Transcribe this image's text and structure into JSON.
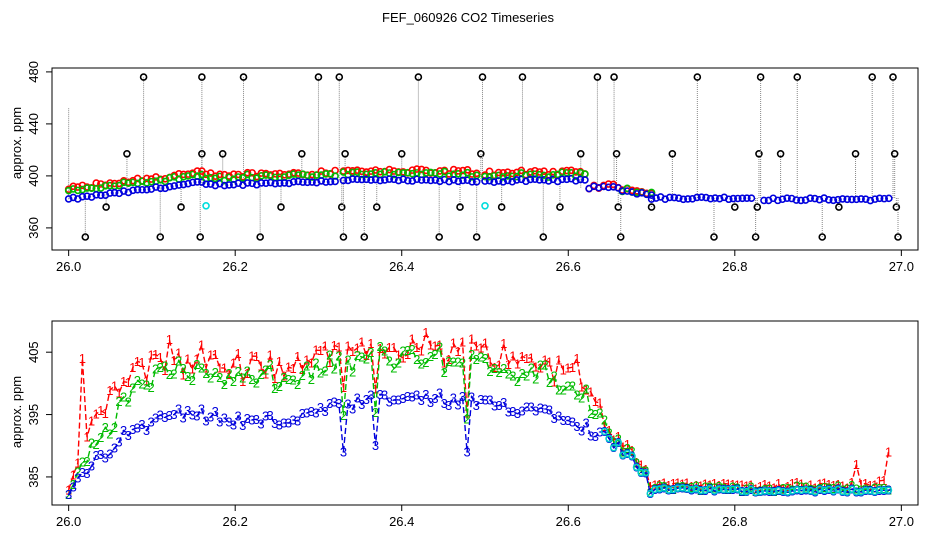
{
  "title": "FEF_060926  CO2 Timeseries",
  "chart_data": [
    {
      "type": "scatter",
      "ylabel": "approx. ppm",
      "xlim": [
        25.98,
        27.02
      ],
      "ylim": [
        343,
        483
      ],
      "xticks": [
        "26.0",
        "26.2",
        "26.4",
        "26.6",
        "26.8",
        "27.0"
      ],
      "yticks": [
        "360",
        "400",
        "440",
        "480"
      ],
      "colors": {
        "c1": "#ff0000",
        "c2": "#00bb00",
        "c3": "#0000dd",
        "cal": "#00dddd",
        "spike": "#000000"
      },
      "segments": [
        {
          "x0": 26.0,
          "x1": 26.16,
          "base0": 382,
          "base1": 395,
          "g_off": 6,
          "r_off": 8
        },
        {
          "x0": 26.165,
          "x1": 26.32,
          "base0": 393,
          "base1": 396,
          "g_off": 5,
          "r_off": 7
        },
        {
          "x0": 26.33,
          "x1": 26.49,
          "base0": 397,
          "base1": 396,
          "g_off": 5,
          "r_off": 7
        },
        {
          "x0": 26.5,
          "x1": 26.62,
          "base0": 396,
          "base1": 397,
          "g_off": 4,
          "r_off": 6
        },
        {
          "x0": 26.625,
          "x1": 26.66,
          "base0": 391,
          "base1": 391,
          "g_off": 0,
          "r_off": 1
        },
        {
          "x0": 26.665,
          "x1": 26.7,
          "base0": 388,
          "base1": 386,
          "g_off": 1,
          "r_off": 2
        },
        {
          "x0": 26.7,
          "x1": 26.82,
          "base0": 383,
          "base1": 383,
          "g_off": 0,
          "r_off": 0
        },
        {
          "x0": 26.835,
          "x1": 26.985,
          "base0": 382,
          "base1": 382,
          "g_off": 0,
          "r_off": 0
        }
      ],
      "spikes": [
        {
          "x": 26.0,
          "y": 452,
          "top": 452,
          "marker": false
        },
        {
          "x": 26.02,
          "y": 353
        },
        {
          "x": 26.045,
          "y": 376
        },
        {
          "x": 26.07,
          "y": 417
        },
        {
          "x": 26.09,
          "y": 476
        },
        {
          "x": 26.11,
          "y": 353
        },
        {
          "x": 26.135,
          "y": 376
        },
        {
          "x": 26.16,
          "y": 476
        },
        {
          "x": 26.16,
          "y": 417
        },
        {
          "x": 26.158,
          "y": 353
        },
        {
          "x": 26.185,
          "y": 417
        },
        {
          "x": 26.21,
          "y": 476
        },
        {
          "x": 26.23,
          "y": 353
        },
        {
          "x": 26.255,
          "y": 376
        },
        {
          "x": 26.28,
          "y": 417
        },
        {
          "x": 26.3,
          "y": 476
        },
        {
          "x": 26.325,
          "y": 476
        },
        {
          "x": 26.328,
          "y": 376
        },
        {
          "x": 26.33,
          "y": 353
        },
        {
          "x": 26.332,
          "y": 417
        },
        {
          "x": 26.355,
          "y": 353
        },
        {
          "x": 26.37,
          "y": 376
        },
        {
          "x": 26.4,
          "y": 417
        },
        {
          "x": 26.42,
          "y": 476
        },
        {
          "x": 26.445,
          "y": 353
        },
        {
          "x": 26.47,
          "y": 376
        },
        {
          "x": 26.49,
          "y": 353
        },
        {
          "x": 26.495,
          "y": 417
        },
        {
          "x": 26.497,
          "y": 476
        },
        {
          "x": 26.52,
          "y": 376
        },
        {
          "x": 26.545,
          "y": 476
        },
        {
          "x": 26.57,
          "y": 353
        },
        {
          "x": 26.59,
          "y": 376
        },
        {
          "x": 26.615,
          "y": 417
        },
        {
          "x": 26.635,
          "y": 476
        },
        {
          "x": 26.655,
          "y": 476
        },
        {
          "x": 26.658,
          "y": 417
        },
        {
          "x": 26.66,
          "y": 376
        },
        {
          "x": 26.663,
          "y": 353
        },
        {
          "x": 26.7,
          "y": 376
        },
        {
          "x": 26.725,
          "y": 417
        },
        {
          "x": 26.755,
          "y": 476
        },
        {
          "x": 26.775,
          "y": 353
        },
        {
          "x": 26.8,
          "y": 376
        },
        {
          "x": 26.825,
          "y": 353
        },
        {
          "x": 26.827,
          "y": 376
        },
        {
          "x": 26.829,
          "y": 417
        },
        {
          "x": 26.831,
          "y": 476
        },
        {
          "x": 26.855,
          "y": 417
        },
        {
          "x": 26.875,
          "y": 476
        },
        {
          "x": 26.905,
          "y": 353
        },
        {
          "x": 26.925,
          "y": 376
        },
        {
          "x": 26.945,
          "y": 417
        },
        {
          "x": 26.965,
          "y": 476
        },
        {
          "x": 26.99,
          "y": 476
        },
        {
          "x": 26.992,
          "y": 417
        },
        {
          "x": 26.994,
          "y": 376
        },
        {
          "x": 26.996,
          "y": 353
        }
      ],
      "calibration_points": [
        {
          "x": 26.165,
          "y": 377
        },
        {
          "x": 26.5,
          "y": 377
        }
      ]
    },
    {
      "type": "line",
      "ylabel": "approx. ppm",
      "xlim": [
        25.98,
        27.02
      ],
      "ylim": [
        380.5,
        410
      ],
      "xticks": [
        "26.0",
        "26.2",
        "26.4",
        "26.6",
        "26.8",
        "27.0"
      ],
      "yticks": [
        "385",
        "395",
        "405"
      ],
      "series": [
        {
          "glyph": "1",
          "color": "#ff0000"
        },
        {
          "glyph": "2",
          "color": "#00bb00"
        },
        {
          "glyph": "3",
          "color": "#0000dd"
        }
      ],
      "anchors_3": [
        [
          26.0,
          382.5
        ],
        [
          26.03,
          387
        ],
        [
          26.06,
          391
        ],
        [
          26.09,
          393
        ],
        [
          26.12,
          396
        ],
        [
          26.16,
          395
        ],
        [
          26.2,
          394
        ],
        [
          26.26,
          394
        ],
        [
          26.32,
          396
        ],
        [
          26.38,
          397.5
        ],
        [
          26.44,
          397.5
        ],
        [
          26.5,
          396.5
        ],
        [
          26.56,
          396
        ],
        [
          26.6,
          395
        ],
        [
          26.62,
          393
        ],
        [
          26.65,
          391
        ],
        [
          26.68,
          388
        ],
        [
          26.7,
          383
        ],
        [
          26.75,
          383
        ],
        [
          26.82,
          382.8
        ],
        [
          26.84,
          382.8
        ],
        [
          26.985,
          382.8
        ]
      ],
      "gap_after": 26.82,
      "red_events": [
        [
          26.018,
          404
        ],
        [
          26.12,
          407
        ],
        [
          26.55,
          404
        ],
        [
          26.61,
          404
        ],
        [
          26.945,
          387
        ],
        [
          26.985,
          389
        ]
      ],
      "blue_dips": [
        [
          26.33,
          389
        ],
        [
          26.37,
          390
        ],
        [
          26.48,
          389
        ]
      ],
      "g_off": [
        [
          26.0,
          0
        ],
        [
          26.08,
          7
        ],
        [
          26.55,
          6
        ],
        [
          26.62,
          5
        ],
        [
          26.65,
          1
        ],
        [
          26.7,
          0.3
        ],
        [
          26.985,
          0.3
        ]
      ],
      "r_off": [
        [
          26.0,
          1
        ],
        [
          26.05,
          9
        ],
        [
          26.55,
          8
        ],
        [
          26.62,
          7
        ],
        [
          26.65,
          1.5
        ],
        [
          26.7,
          0.8
        ],
        [
          26.93,
          0.8
        ],
        [
          26.985,
          1.5
        ]
      ]
    }
  ]
}
